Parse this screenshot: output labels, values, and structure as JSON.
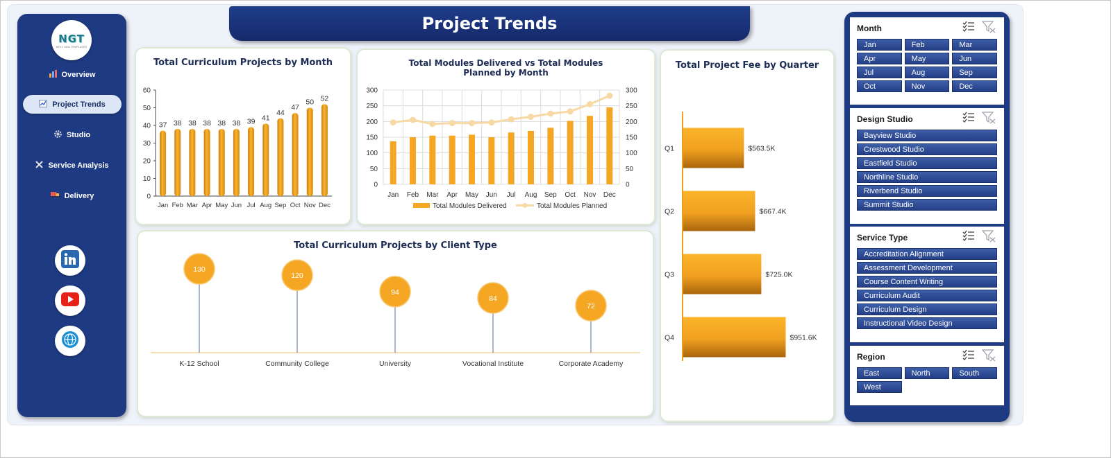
{
  "header": {
    "title": "Project Trends"
  },
  "logo": {
    "text": "NGT",
    "subtext": "NEXT GEN TEMPLATES"
  },
  "nav": {
    "items": [
      {
        "label": "Overview",
        "icon": "bar-chart-icon"
      },
      {
        "label": "Project Trends",
        "icon": "trend-chart-icon",
        "active": true
      },
      {
        "label": "Studio",
        "icon": "gear-icon"
      },
      {
        "label": "Service Analysis",
        "icon": "tools-icon"
      },
      {
        "label": "Delivery",
        "icon": "truck-icon"
      }
    ],
    "social": [
      "linkedin-icon",
      "youtube-icon",
      "globe-icon"
    ]
  },
  "colors": {
    "navy": "#1e3a82",
    "bar_orange": "#f0a020",
    "line_peach": "#f7d9a6"
  },
  "chart_data": [
    {
      "type": "bar",
      "title": "Total Curriculum Projects by Month",
      "categories": [
        "Jan",
        "Feb",
        "Mar",
        "Apr",
        "May",
        "Jun",
        "Jul",
        "Aug",
        "Sep",
        "Oct",
        "Nov",
        "Dec"
      ],
      "values": [
        37,
        38,
        38,
        38,
        38,
        38,
        39,
        41,
        44,
        47,
        50,
        52
      ],
      "ylim": [
        0,
        60
      ],
      "yticks": [
        0,
        10,
        20,
        30,
        40,
        50,
        60
      ],
      "grid": false,
      "data_labels": true
    },
    {
      "type": "bar",
      "title": "Total Modules Delivered vs Total Modules Planned by Month",
      "categories": [
        "Jan",
        "Feb",
        "Mar",
        "Apr",
        "May",
        "Jun",
        "Jul",
        "Aug",
        "Sep",
        "Oct",
        "Nov",
        "Dec"
      ],
      "series": [
        {
          "name": "Total Modules Delivered",
          "kind": "bar",
          "values": [
            137,
            150,
            155,
            155,
            158,
            150,
            165,
            170,
            180,
            202,
            218,
            245
          ]
        },
        {
          "name": "Total Modules Planned",
          "kind": "line",
          "values": [
            197,
            205,
            192,
            195,
            195,
            197,
            207,
            215,
            225,
            232,
            255,
            282
          ]
        }
      ],
      "ylim": [
        0,
        300
      ],
      "yticks": [
        0,
        50,
        100,
        150,
        200,
        250,
        300
      ],
      "secondary_yticks": [
        0,
        50,
        100,
        150,
        200,
        250,
        300
      ],
      "grid": true,
      "legend": "bottom"
    },
    {
      "type": "bar",
      "orientation": "horizontal",
      "title": "Total Project Fee by Quarter",
      "categories": [
        "Q1",
        "Q2",
        "Q3",
        "Q4"
      ],
      "values": [
        563.5,
        667.4,
        725.0,
        951.6
      ],
      "value_labels": [
        "$563.5K",
        "$667.4K",
        "$725.0K",
        "$951.6K"
      ],
      "xlim": [
        0,
        1000
      ]
    },
    {
      "type": "scatter",
      "style": "lollipop",
      "title": "Total Curriculum Projects by Client Type",
      "categories": [
        "K-12 School",
        "Community College",
        "University",
        "Vocational Institute",
        "Corporate Academy"
      ],
      "values": [
        130,
        120,
        94,
        84,
        72
      ]
    }
  ],
  "slicers": [
    {
      "title": "Month",
      "cols": 3,
      "items": [
        "Jan",
        "Feb",
        "Mar",
        "Apr",
        "May",
        "Jun",
        "Jul",
        "Aug",
        "Sep",
        "Oct",
        "Nov",
        "Dec"
      ]
    },
    {
      "title": "Design Studio",
      "cols": 1,
      "items": [
        "Bayview Studio",
        "Crestwood Studio",
        "Eastfield Studio",
        "Northline Studio",
        "Riverbend Studio",
        "Summit Studio"
      ]
    },
    {
      "title": "Service Type",
      "cols": 1,
      "items": [
        "Accreditation Alignment",
        "Assessment Development",
        "Course Content Writing",
        "Curriculum Audit",
        "Curriculum Design",
        "Instructional Video Design"
      ]
    },
    {
      "title": "Region",
      "cols": 3,
      "items": [
        "East",
        "North",
        "South",
        "West"
      ]
    }
  ]
}
